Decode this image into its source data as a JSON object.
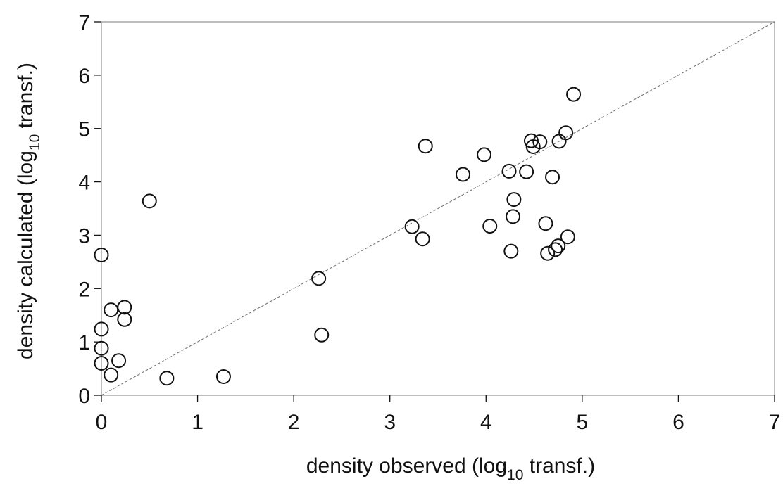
{
  "chart_data": {
    "type": "scatter",
    "xlabel": {
      "pre": "density observed (log",
      "sub": "10",
      "post": " transf.)"
    },
    "ylabel": {
      "pre": "density calculated (log",
      "sub": "10",
      "post": " transf.)"
    },
    "xlim": [
      0,
      7
    ],
    "ylim": [
      0,
      7
    ],
    "xticks": [
      "0",
      "1",
      "2",
      "3",
      "4",
      "5",
      "6",
      "7"
    ],
    "yticks": [
      "0",
      "1",
      "2",
      "3",
      "4",
      "5",
      "6",
      "7"
    ],
    "grid": false,
    "reference_line": {
      "style": "dashed",
      "x": [
        0,
        7
      ],
      "y": [
        0,
        7
      ]
    },
    "points": [
      {
        "x": 0.0,
        "y": 2.63
      },
      {
        "x": 0.0,
        "y": 1.24
      },
      {
        "x": 0.0,
        "y": 0.88
      },
      {
        "x": 0.0,
        "y": 0.6
      },
      {
        "x": 0.1,
        "y": 0.38
      },
      {
        "x": 0.1,
        "y": 1.6
      },
      {
        "x": 0.18,
        "y": 0.65
      },
      {
        "x": 0.24,
        "y": 1.65
      },
      {
        "x": 0.24,
        "y": 1.42
      },
      {
        "x": 0.5,
        "y": 3.64
      },
      {
        "x": 0.68,
        "y": 0.32
      },
      {
        "x": 1.27,
        "y": 0.35
      },
      {
        "x": 2.26,
        "y": 2.19
      },
      {
        "x": 2.29,
        "y": 1.13
      },
      {
        "x": 3.23,
        "y": 3.16
      },
      {
        "x": 3.34,
        "y": 2.93
      },
      {
        "x": 3.37,
        "y": 4.67
      },
      {
        "x": 3.76,
        "y": 4.14
      },
      {
        "x": 3.98,
        "y": 4.51
      },
      {
        "x": 4.04,
        "y": 3.17
      },
      {
        "x": 4.24,
        "y": 4.2
      },
      {
        "x": 4.26,
        "y": 2.7
      },
      {
        "x": 4.28,
        "y": 3.35
      },
      {
        "x": 4.29,
        "y": 3.67
      },
      {
        "x": 4.42,
        "y": 4.19
      },
      {
        "x": 4.47,
        "y": 4.77
      },
      {
        "x": 4.49,
        "y": 4.66
      },
      {
        "x": 4.56,
        "y": 4.75
      },
      {
        "x": 4.62,
        "y": 3.22
      },
      {
        "x": 4.64,
        "y": 2.66
      },
      {
        "x": 4.69,
        "y": 4.09
      },
      {
        "x": 4.72,
        "y": 2.73
      },
      {
        "x": 4.75,
        "y": 2.8
      },
      {
        "x": 4.76,
        "y": 4.76
      },
      {
        "x": 4.83,
        "y": 4.92
      },
      {
        "x": 4.85,
        "y": 2.97
      },
      {
        "x": 4.91,
        "y": 5.64
      }
    ]
  }
}
